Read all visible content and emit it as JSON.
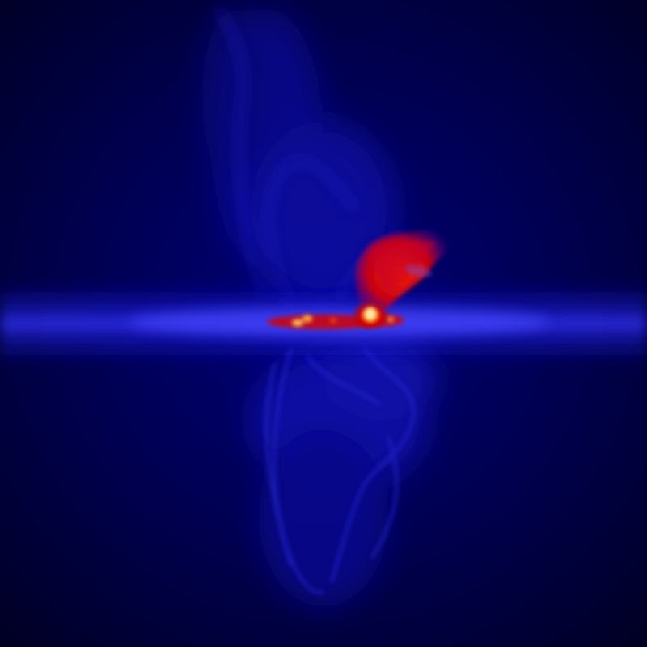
{
  "image": {
    "subject": "simulated-galaxy-gas-density-render",
    "colors": {
      "background": "#00003a",
      "background_deep": "#000018",
      "disk": "#1a1aff",
      "disk_bright": "#3c3cff",
      "outflow": "#1818c8",
      "hot_gas": "#e00000",
      "hot_core": "#ffd060"
    }
  }
}
